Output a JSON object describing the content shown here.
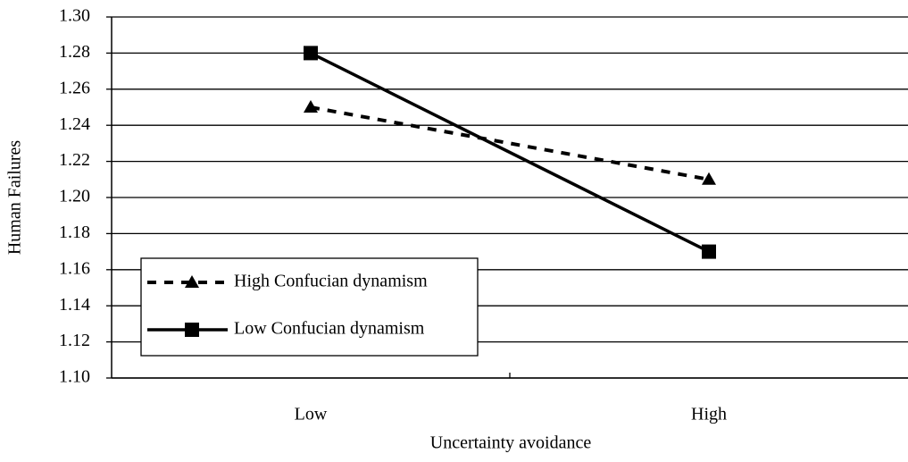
{
  "chart_data": {
    "type": "line",
    "x_label": "Uncertainty avoidance",
    "y_label": "Human Failures",
    "categories": [
      "Low",
      "High"
    ],
    "series": [
      {
        "name": "High Confucian dynamism",
        "color": "#000000",
        "linestyle": "dashed",
        "marker": "triangle",
        "values": [
          1.25,
          1.21
        ]
      },
      {
        "name": "Low Confucian dynamism",
        "color": "#000000",
        "linestyle": "solid",
        "marker": "square",
        "values": [
          1.28,
          1.17
        ]
      }
    ],
    "ylim": [
      1.1,
      1.3
    ],
    "yticks": [
      {
        "value": 1.1,
        "label": "1.10"
      },
      1.12,
      1.14,
      1.16,
      1.18,
      {
        "value": 1.2,
        "label": "1.20"
      },
      1.22,
      1.24,
      1.26,
      1.28,
      {
        "value": 1.3,
        "label": "1.30"
      }
    ],
    "grid": true,
    "legend": "lower left"
  }
}
